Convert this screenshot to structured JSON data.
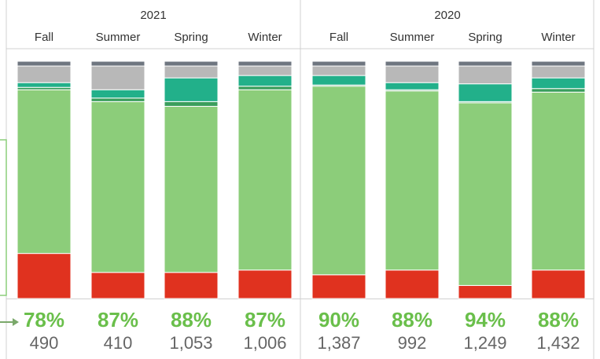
{
  "chart_data": {
    "type": "stacked_bar",
    "groups": [
      "2021",
      "2020"
    ],
    "categories": [
      "Fall",
      "Summer",
      "Spring",
      "Winter",
      "Fall",
      "Summer",
      "Spring",
      "Winter"
    ],
    "ylim": [
      0,
      100
    ],
    "series": [
      {
        "color": "#e0321f",
        "values": [
          19,
          11,
          11,
          12,
          10,
          12,
          5.5,
          12
        ]
      },
      {
        "color": "#8ccd7a",
        "values": [
          69,
          72,
          70,
          76,
          79.5,
          75.5,
          77,
          75
        ]
      },
      {
        "color": "#3a9e5c",
        "values": [
          1,
          1.5,
          2,
          1.5,
          0.5,
          0.5,
          0.5,
          1.5
        ]
      },
      {
        "color": "#22b08a",
        "values": [
          2,
          3.5,
          10,
          4.5,
          4,
          3,
          7.5,
          4.5
        ]
      },
      {
        "color": "#b8b8b8",
        "values": [
          7,
          10,
          5,
          4,
          4,
          7,
          7.5,
          5
        ]
      },
      {
        "color": "#6f7680",
        "values": [
          2,
          2,
          2,
          2,
          2,
          2,
          2,
          2
        ]
      }
    ],
    "rates": {
      "values": [
        78,
        87,
        88,
        87,
        90,
        88,
        94,
        88
      ],
      "value_labels": [
        "78%",
        "87%",
        "88%",
        "87%",
        "90%",
        "88%",
        "94%",
        "88%"
      ]
    },
    "counts": {
      "values": [
        490,
        410,
        1053,
        1006,
        1387,
        992,
        1249,
        1432
      ],
      "value_labels": [
        "490",
        "410",
        "1,053",
        "1,006",
        "1,387",
        "992",
        "1,249",
        "1,432"
      ]
    }
  }
}
